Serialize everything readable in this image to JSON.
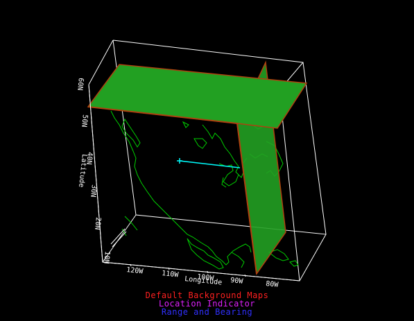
{
  "axes": {
    "longitude_label": "Longitude",
    "latitude_label": "Latitude",
    "lon_ticks": [
      "120W",
      "110W",
      "100W",
      "90W",
      "80W"
    ],
    "lat_ticks": [
      "10N",
      "20N",
      "30N",
      "40N",
      "50N",
      "60N"
    ]
  },
  "legend": [
    {
      "label": "Default Background Maps",
      "color": "#ff2020"
    },
    {
      "label": "Location Indicator",
      "color": "#e020ff"
    },
    {
      "label": "Range and Bearing",
      "color": "#3030ff"
    }
  ],
  "colors": {
    "box": "#ffffff",
    "map": "#00d000",
    "plane": "#22a022",
    "plane_edge": "#b04010",
    "indicator": "#00ffff"
  }
}
